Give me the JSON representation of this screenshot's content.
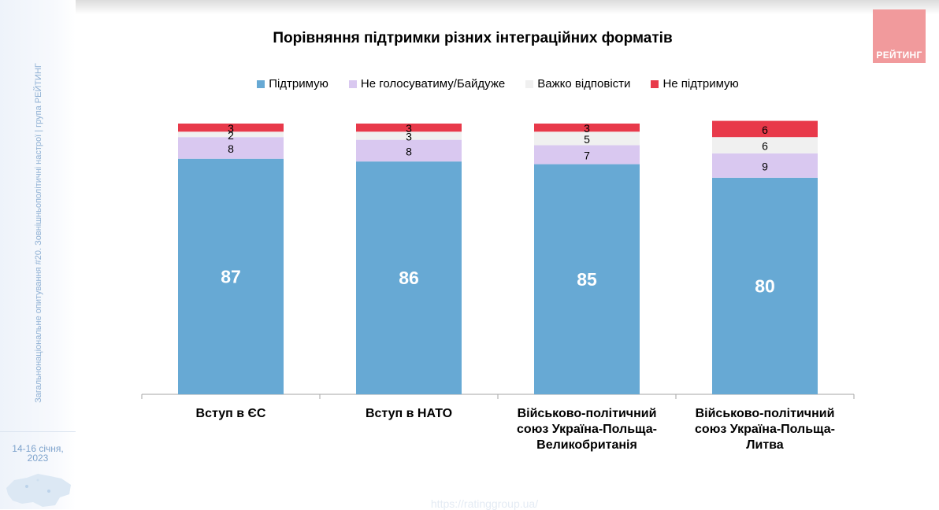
{
  "sidebar": {
    "vertical_caption": "Загальнонаціональне опитування #20. Зовнішньополітичні настрої | група РЕЙТИНГ",
    "date": [
      "14-16 січня,",
      "2023"
    ]
  },
  "logo": {
    "text": "РЕЙТИНГ",
    "color": "#f19a9c"
  },
  "footer": {
    "url": "https://ratinggroup.ua/"
  },
  "colors": {
    "support": "#67a9d4",
    "not_vote": "#d9c8f0",
    "hard_to_say": "#f0f0f0",
    "not_support": "#e8394a"
  },
  "chart_data": {
    "type": "bar",
    "stacked": true,
    "title": "Порівняння підтримки різних інтеграційних форматів",
    "categories": [
      "Вступ в ЄС",
      "Вступ в  НАТО",
      "Військово-політичний союз Україна-Польща-Великобританія",
      "Військово-політичний союз Україна-Польща-Литва"
    ],
    "category_lines": [
      [
        "Вступ в ЄС"
      ],
      [
        "Вступ в  НАТО"
      ],
      [
        "Військово-політичний",
        "союз Україна-Польща-",
        "Великобританія"
      ],
      [
        "Військово-політичний",
        "союз Україна-Польща-",
        "Литва"
      ]
    ],
    "series": [
      {
        "name": "Підтримую",
        "values": [
          87,
          86,
          85,
          80
        ],
        "color": "#67a9d4"
      },
      {
        "name": "Не голосуватиму/Байдуже",
        "values": [
          8,
          8,
          7,
          9
        ],
        "color": "#d9c8f0"
      },
      {
        "name": "Важко відповісти",
        "values": [
          2,
          3,
          5,
          6
        ],
        "color": "#f0f0f0"
      },
      {
        "name": "Не підтримую",
        "values": [
          3,
          3,
          3,
          6
        ],
        "color": "#e8394a"
      }
    ],
    "ylim": [
      0,
      100
    ],
    "grid": false,
    "legend_position": "top"
  }
}
